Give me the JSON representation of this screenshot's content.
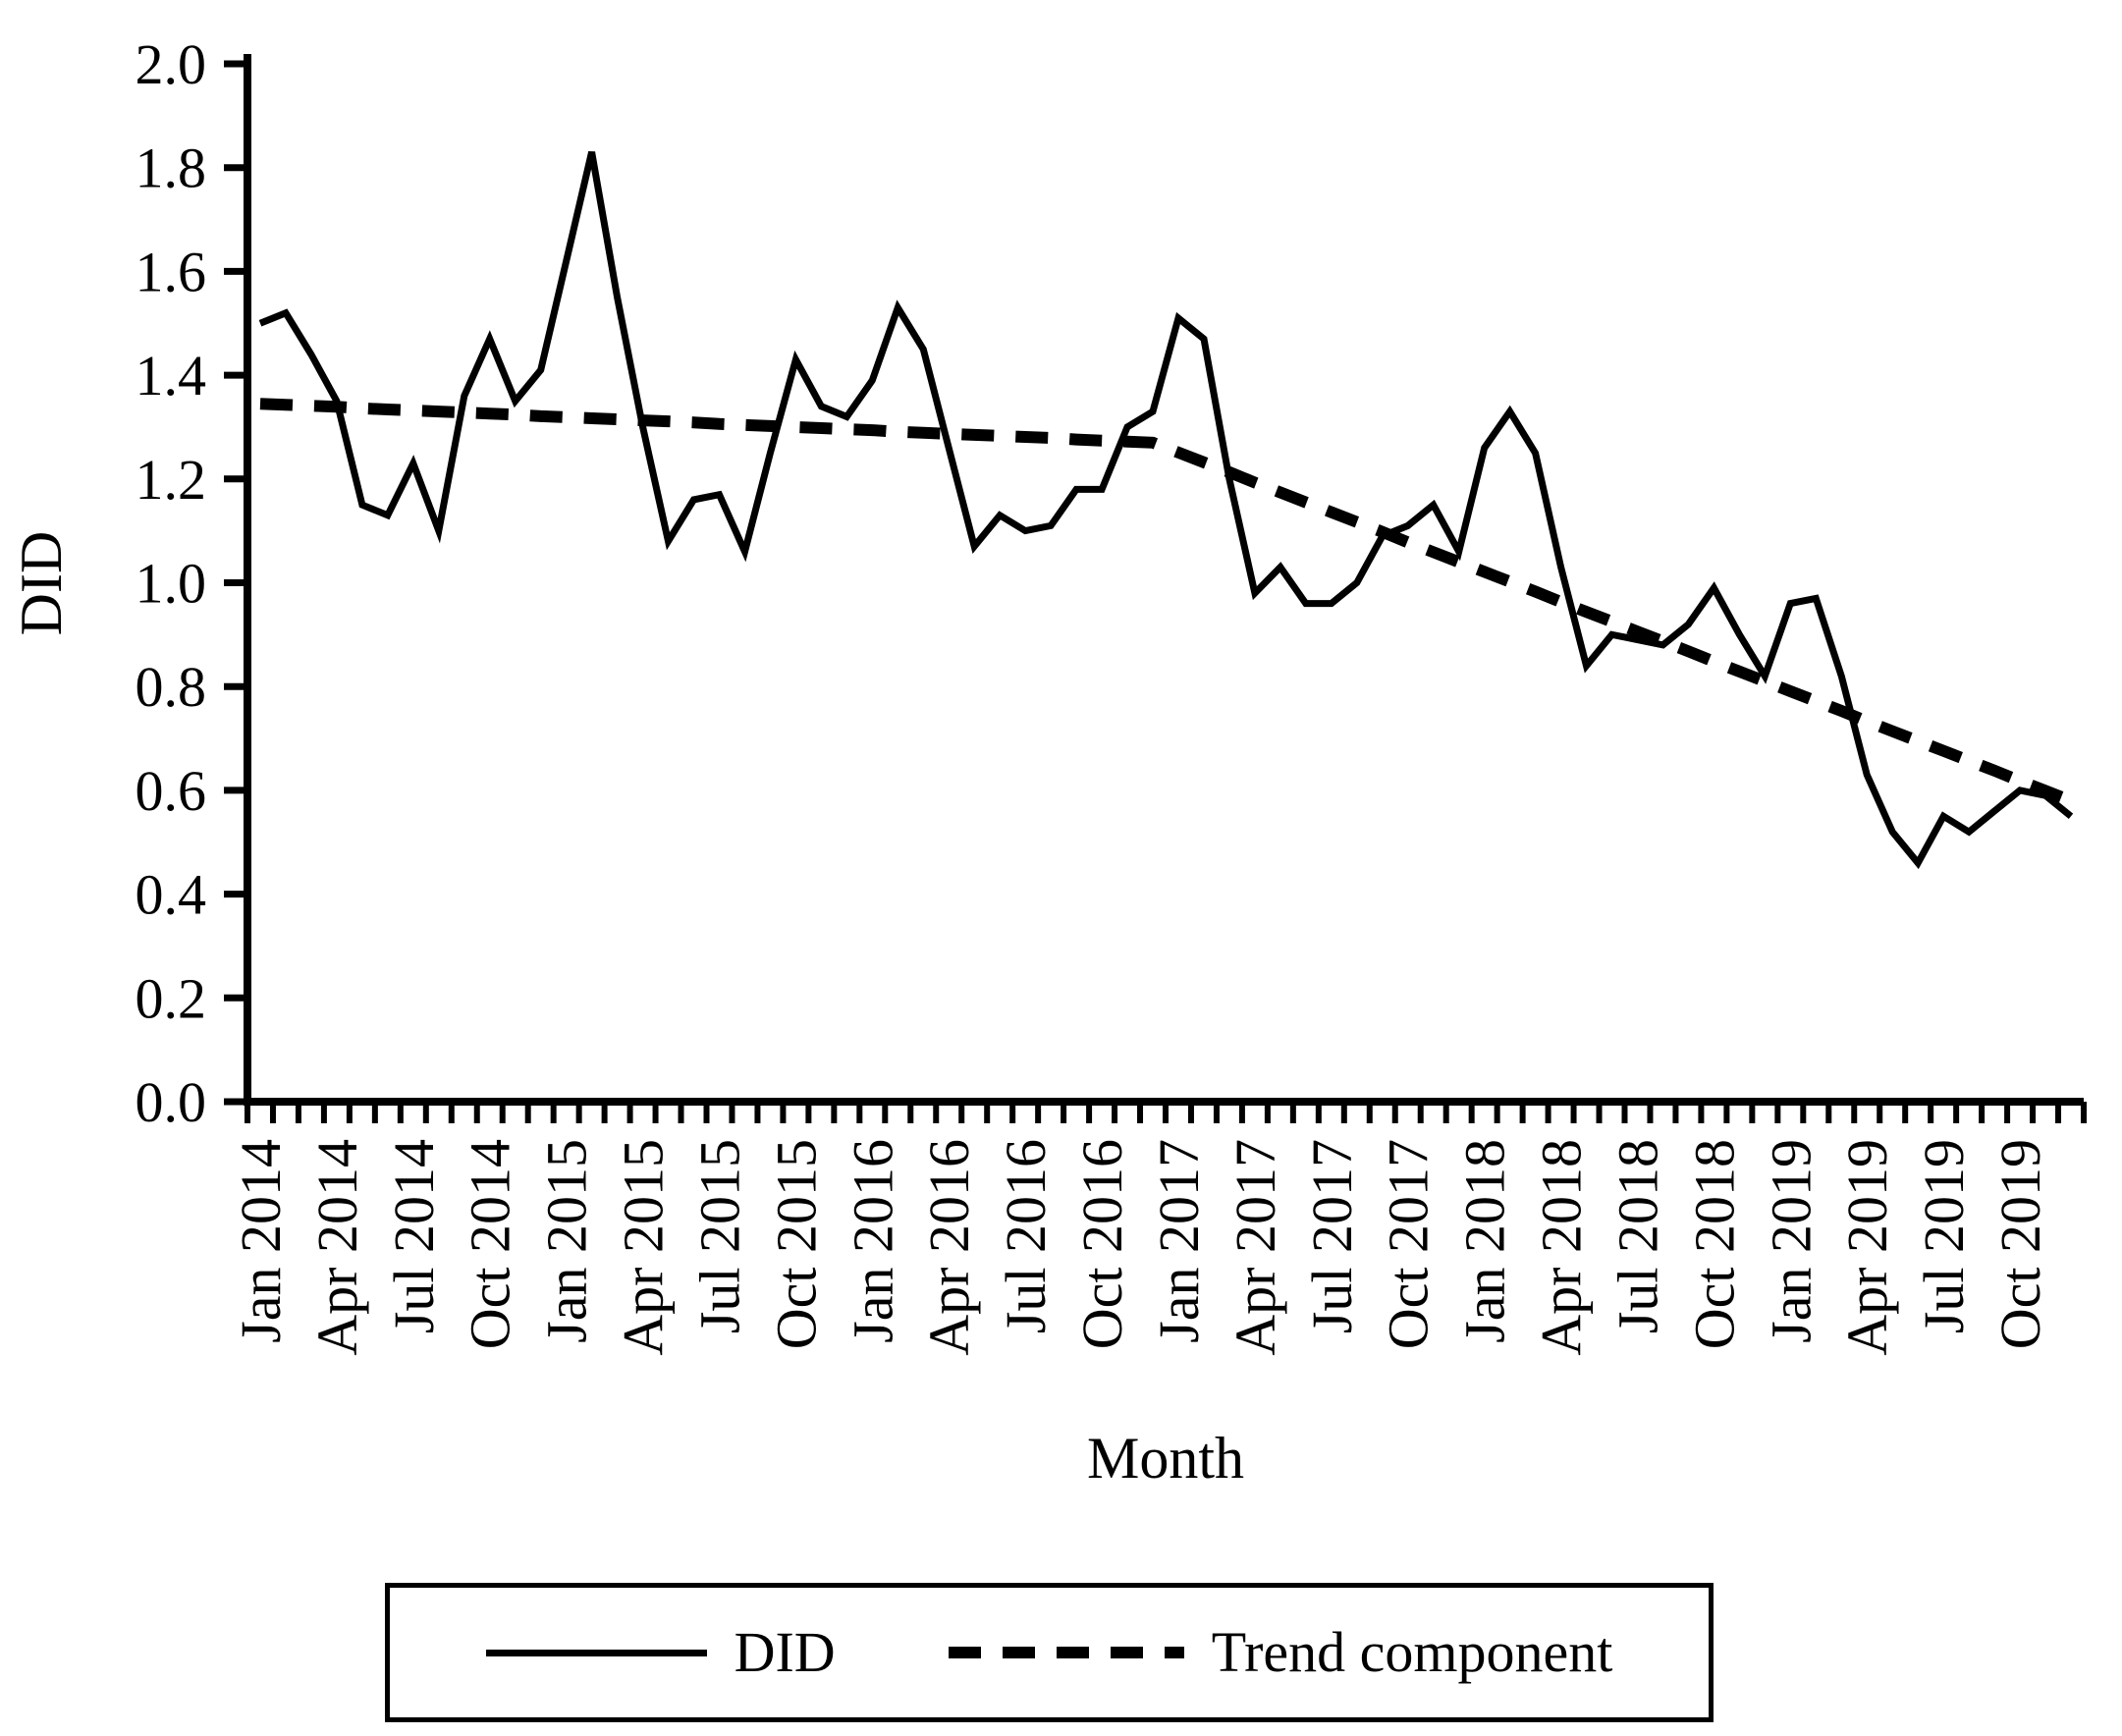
{
  "figure": {
    "background": "#ffffff",
    "ink": "#000000"
  },
  "y_axis": {
    "label": "DID",
    "tick_labels": [
      "0.0",
      "0.2",
      "0.4",
      "0.6",
      "0.8",
      "1.0",
      "1.2",
      "1.4",
      "1.6",
      "1.8",
      "2.0"
    ],
    "min": 0,
    "max": 2
  },
  "x_axis": {
    "label": "Month",
    "tick_labels": [
      "Jan 2014",
      "Apr 2014",
      "Jul 2014",
      "Oct 2014",
      "Jan 2015",
      "Apr 2015",
      "Jul 2015",
      "Oct 2015",
      "Jan 2016",
      "Apr 2016",
      "Jul 2016",
      "Oct 2016",
      "Jan 2017",
      "Apr 2017",
      "Jul 2017",
      "Oct 2017",
      "Jan 2018",
      "Apr 2018",
      "Jul 2018",
      "Oct 2018",
      "Jan 2019",
      "Apr 2019",
      "Jul 2019",
      "Oct 2019"
    ]
  },
  "legend": {
    "items": [
      {
        "label": "DID",
        "style": "solid"
      },
      {
        "label": "Trend component",
        "style": "dashed"
      }
    ]
  },
  "chart_data": {
    "type": "line",
    "title": "",
    "xlabel": "Month",
    "ylabel": "DID",
    "ylim": [
      0.0,
      2.0
    ],
    "ytick_step": 0.2,
    "grid": false,
    "legend_position": "bottom",
    "categories": [
      "Jan 2014",
      "Feb 2014",
      "Mar 2014",
      "Apr 2014",
      "May 2014",
      "Jun 2014",
      "Jul 2014",
      "Aug 2014",
      "Sep 2014",
      "Oct 2014",
      "Nov 2014",
      "Dec 2014",
      "Jan 2015",
      "Feb 2015",
      "Mar 2015",
      "Apr 2015",
      "May 2015",
      "Jun 2015",
      "Jul 2015",
      "Aug 2015",
      "Sep 2015",
      "Oct 2015",
      "Nov 2015",
      "Dec 2015",
      "Jan 2016",
      "Feb 2016",
      "Mar 2016",
      "Apr 2016",
      "May 2016",
      "Jun 2016",
      "Jul 2016",
      "Aug 2016",
      "Sep 2016",
      "Oct 2016",
      "Nov 2016",
      "Dec 2016",
      "Jan 2017",
      "Feb 2017",
      "Mar 2017",
      "Apr 2017",
      "May 2017",
      "Jun 2017",
      "Jul 2017",
      "Aug 2017",
      "Sep 2017",
      "Oct 2017",
      "Nov 2017",
      "Dec 2017",
      "Jan 2018",
      "Feb 2018",
      "Mar 2018",
      "Apr 2018",
      "May 2018",
      "Jun 2018",
      "Jul 2018",
      "Aug 2018",
      "Sep 2018",
      "Oct 2018",
      "Nov 2018",
      "Dec 2018",
      "Jan 2019",
      "Feb 2019",
      "Mar 2019",
      "Apr 2019",
      "May 2019",
      "Jun 2019",
      "Jul 2019",
      "Aug 2019",
      "Sep 2019",
      "Oct 2019",
      "Nov 2019",
      "Dec 2019"
    ],
    "series": [
      {
        "name": "DID",
        "style": "solid",
        "values": [
          1.5,
          1.52,
          1.44,
          1.35,
          1.15,
          1.13,
          1.23,
          1.1,
          1.36,
          1.47,
          1.35,
          1.41,
          1.62,
          1.83,
          1.55,
          1.3,
          1.08,
          1.16,
          1.17,
          1.06,
          1.25,
          1.43,
          1.34,
          1.32,
          1.39,
          1.53,
          1.45,
          1.26,
          1.07,
          1.13,
          1.1,
          1.11,
          1.18,
          1.18,
          1.3,
          1.33,
          1.51,
          1.47,
          1.2,
          0.98,
          1.03,
          0.96,
          0.96,
          1.0,
          1.09,
          1.11,
          1.15,
          1.06,
          1.26,
          1.33,
          1.25,
          1.03,
          0.84,
          0.9,
          0.89,
          0.88,
          0.92,
          0.99,
          0.9,
          0.82,
          0.96,
          0.97,
          0.82,
          0.63,
          0.52,
          0.46,
          0.55,
          0.52,
          0.56,
          0.6,
          0.59,
          0.55
        ]
      },
      {
        "name": "Trend component",
        "style": "dashed",
        "values": [
          1.345,
          1.343,
          1.341,
          1.339,
          1.336,
          1.334,
          1.332,
          1.33,
          1.328,
          1.326,
          1.324,
          1.321,
          1.319,
          1.317,
          1.315,
          1.313,
          1.311,
          1.309,
          1.306,
          1.304,
          1.302,
          1.3,
          1.298,
          1.296,
          1.294,
          1.291,
          1.289,
          1.287,
          1.285,
          1.283,
          1.281,
          1.279,
          1.276,
          1.274,
          1.272,
          1.27,
          1.251,
          1.232,
          1.213,
          1.193,
          1.174,
          1.155,
          1.136,
          1.117,
          1.098,
          1.078,
          1.059,
          1.04,
          1.021,
          1.002,
          0.983,
          0.963,
          0.944,
          0.925,
          0.906,
          0.887,
          0.868,
          0.848,
          0.829,
          0.81,
          0.791,
          0.772,
          0.753,
          0.733,
          0.714,
          0.695,
          0.676,
          0.657,
          0.638,
          0.618,
          0.599,
          0.58
        ]
      }
    ]
  }
}
